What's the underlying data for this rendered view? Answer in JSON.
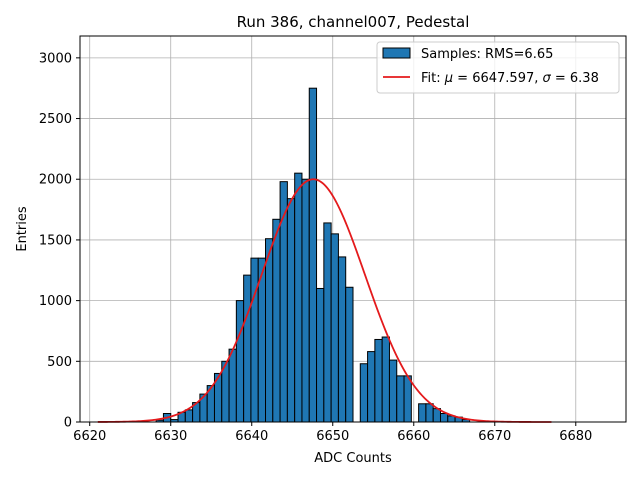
{
  "chart_data": {
    "type": "bar",
    "title": "Run 386, channel007, Pedestal",
    "xlabel": "ADC Counts",
    "ylabel": "Entries",
    "xlim": [
      6618.8,
      6686.2
    ],
    "ylim": [
      0,
      3180
    ],
    "xticks": [
      6620,
      6630,
      6640,
      6650,
      6660,
      6670,
      6680
    ],
    "yticks": [
      0,
      500,
      1000,
      1500,
      2000,
      2500,
      3000
    ],
    "grid": true,
    "legend_position": "top-right",
    "histogram": {
      "name": "Samples: RMS=6.65",
      "color": "#1f77b4",
      "edge_color": "#000000",
      "bin_edges": [
        6621.0,
        6621.9,
        6622.8,
        6623.7,
        6624.6,
        6625.5,
        6626.4,
        6627.3,
        6628.2,
        6629.1,
        6630.0,
        6630.9,
        6631.8,
        6632.7,
        6633.6,
        6634.5,
        6635.4,
        6636.3,
        6637.2,
        6638.1,
        6639.0,
        6639.9,
        6640.8,
        6641.7,
        6642.6,
        6643.5,
        6644.4,
        6645.3,
        6646.2,
        6647.1,
        6648.0,
        6648.9,
        6649.8,
        6650.7,
        6651.6,
        6652.5,
        6653.4,
        6654.3,
        6655.2,
        6656.1,
        6657.0,
        6657.9,
        6658.8,
        6659.7,
        6660.6,
        6661.5,
        6662.4,
        6663.3,
        6664.2,
        6665.1,
        6666.0,
        6666.9,
        6667.8,
        6668.7,
        6669.6,
        6670.5,
        6671.4,
        6672.3,
        6673.2,
        6674.1,
        6675.0,
        6675.9,
        6676.8,
        6677.7,
        6678.6,
        6679.5,
        6680.4,
        6681.3,
        6682.2,
        6683.1
      ],
      "counts": [
        0,
        0,
        0,
        0,
        0,
        0,
        0,
        0,
        15,
        70,
        20,
        80,
        100,
        160,
        230,
        300,
        400,
        500,
        600,
        1000,
        1210,
        1350,
        1350,
        1510,
        1670,
        1980,
        1840,
        2050,
        2000,
        2750,
        1100,
        1640,
        1550,
        1360,
        1110,
        0,
        480,
        580,
        680,
        700,
        510,
        380,
        380,
        0,
        150,
        150,
        110,
        70,
        50,
        40,
        20,
        0,
        0,
        0,
        0,
        0,
        0,
        0,
        0,
        0,
        0,
        0,
        0,
        0,
        0,
        0,
        0,
        0,
        0
      ]
    },
    "fit": {
      "name_prefix": "Fit: ",
      "mu_symbol": "μ",
      "mu_text": " = 6647.597, ",
      "sigma_symbol": "σ",
      "sigma_text": " = 6.38",
      "color": "#e41a1c",
      "mu": 6647.597,
      "sigma": 6.38,
      "amplitude": 2000,
      "x_range": [
        6621,
        6677
      ]
    }
  }
}
